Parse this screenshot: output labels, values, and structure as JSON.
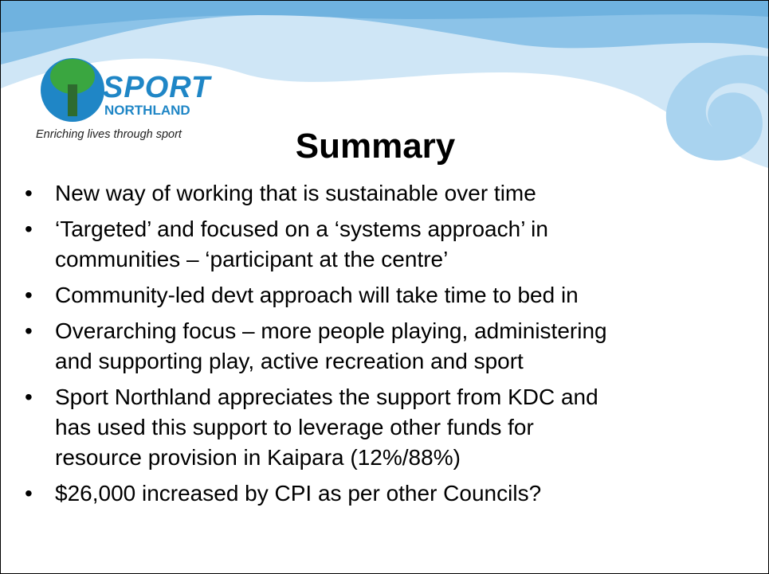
{
  "logo": {
    "name": "SPORT",
    "region": "NORTHLAND",
    "tagline": "Enriching lives through sport"
  },
  "title": "Summary",
  "bullets": [
    [
      "New way of working that is sustainable over time"
    ],
    [
      "‘Targeted’ and focused on a ‘systems approach’ in",
      "communities – ‘participant at the centre’"
    ],
    [
      "Community-led devt approach will take time to bed in"
    ],
    [
      "Overarching focus – more people playing, administering",
      "and supporting play, active recreation and sport"
    ],
    [
      "Sport Northland appreciates the support from KDC and",
      "has used this support to leverage other funds for",
      "resource provision in Kaipara (12%/88%)"
    ],
    [
      "$26,000 increased by CPI as per other Councils?"
    ]
  ]
}
